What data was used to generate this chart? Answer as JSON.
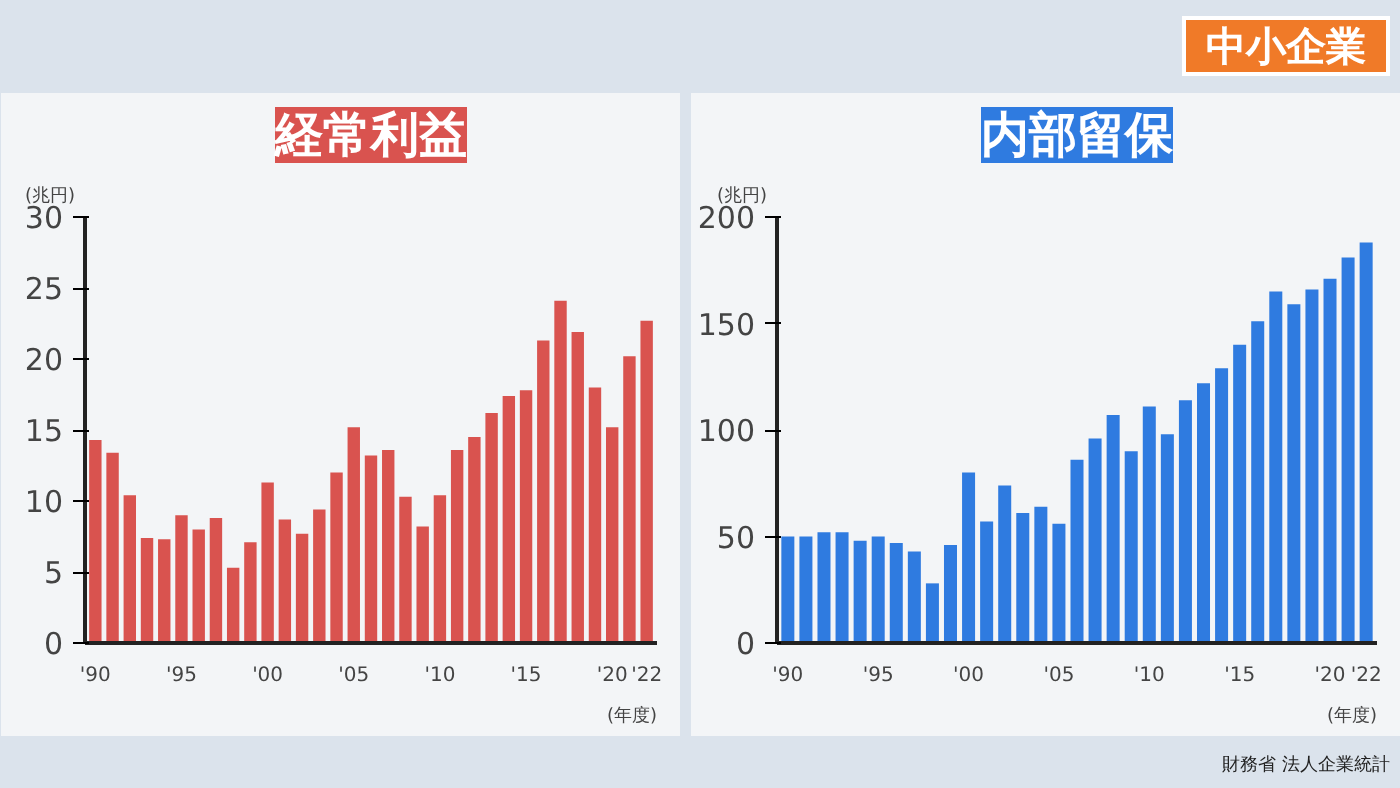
{
  "chart_data": [
    {
      "type": "bar",
      "title": "経常利益",
      "ylabel": "(兆円)",
      "xlabel": "(年度)",
      "color": "#d9534f",
      "x": [
        1990,
        1991,
        1992,
        1993,
        1994,
        1995,
        1996,
        1997,
        1998,
        1999,
        2000,
        2001,
        2002,
        2003,
        2004,
        2005,
        2006,
        2007,
        2008,
        2009,
        2010,
        2011,
        2012,
        2013,
        2014,
        2015,
        2016,
        2017,
        2018,
        2019,
        2020,
        2021,
        2022
      ],
      "values": [
        14.3,
        13.4,
        10.4,
        7.4,
        7.3,
        9.0,
        8.0,
        8.8,
        5.3,
        7.1,
        11.3,
        8.7,
        7.7,
        9.4,
        12.0,
        15.2,
        13.2,
        13.6,
        10.3,
        8.2,
        10.4,
        13.6,
        14.5,
        16.2,
        17.4,
        17.8,
        21.3,
        24.1,
        21.9,
        18.0,
        15.2,
        20.2,
        22.7
      ],
      "xlim": [
        1989.4,
        2022.6
      ],
      "ylim": [
        0,
        30
      ],
      "yticks": [
        0,
        5,
        10,
        15,
        20,
        25,
        30
      ],
      "xticks": [
        {
          "value": 1990,
          "label": "'90"
        },
        {
          "value": 1995,
          "label": "'95"
        },
        {
          "value": 2000,
          "label": "'00"
        },
        {
          "value": 2005,
          "label": "'05"
        },
        {
          "value": 2010,
          "label": "'10"
        },
        {
          "value": 2015,
          "label": "'15"
        },
        {
          "value": 2020,
          "label": "'20"
        },
        {
          "value": 2022,
          "label": "'22"
        }
      ]
    },
    {
      "type": "bar",
      "title": "内部留保",
      "ylabel": "(兆円)",
      "xlabel": "(年度)",
      "color": "#2f7be0",
      "x": [
        1990,
        1991,
        1992,
        1993,
        1994,
        1995,
        1996,
        1997,
        1998,
        1999,
        2000,
        2001,
        2002,
        2003,
        2004,
        2005,
        2006,
        2007,
        2008,
        2009,
        2010,
        2011,
        2012,
        2013,
        2014,
        2015,
        2016,
        2017,
        2018,
        2019,
        2020,
        2021,
        2022
      ],
      "values": [
        50,
        50,
        52,
        52,
        48,
        50,
        47,
        43,
        28,
        46,
        80,
        57,
        74,
        61,
        64,
        56,
        86,
        96,
        107,
        90,
        111,
        98,
        114,
        122,
        129,
        140,
        151,
        165,
        159,
        166,
        171,
        181,
        188
      ],
      "xlim": [
        1989.4,
        2022.6
      ],
      "ylim": [
        0,
        200
      ],
      "yticks": [
        0,
        50,
        100,
        150,
        200
      ],
      "xticks": [
        {
          "value": 1990,
          "label": "'90"
        },
        {
          "value": 1995,
          "label": "'95"
        },
        {
          "value": 2000,
          "label": "'00"
        },
        {
          "value": 2005,
          "label": "'05"
        },
        {
          "value": 2010,
          "label": "'10"
        },
        {
          "value": 2015,
          "label": "'15"
        },
        {
          "value": 2020,
          "label": "'20"
        },
        {
          "value": 2022,
          "label": "'22"
        }
      ],
      "annotations": [
        "中小企業",
        "財務省 法人企業統計"
      ]
    }
  ]
}
